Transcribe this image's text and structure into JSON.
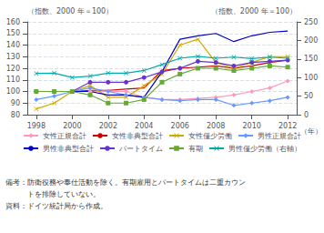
{
  "chart_data": {
    "type": "line",
    "xlabel": "（年）",
    "ylabel": "（指数、2000 年＝100）",
    "y2label": "（指数、2000 年＝100）",
    "x": [
      1998,
      1999,
      2000,
      2001,
      2002,
      2003,
      2004,
      2005,
      2006,
      2007,
      2008,
      2009,
      2010,
      2011,
      2012
    ],
    "xlim": [
      1997.5,
      2012.5
    ],
    "xticks": [
      1998,
      2000,
      2002,
      2004,
      2006,
      2008,
      2010,
      2012
    ],
    "ylim": [
      80,
      160
    ],
    "yticks": [
      80,
      90,
      100,
      110,
      120,
      130,
      140,
      150,
      160
    ],
    "y2lim": [
      0,
      250
    ],
    "y2ticks": [
      0,
      50,
      100,
      150,
      200,
      250
    ],
    "grid": true,
    "legend": "bottom",
    "series": [
      {
        "name": "女性正規合計",
        "color": "#ff99bb",
        "marker": "diamond",
        "values": [
          100,
          100,
          100,
          100,
          100,
          100,
          95,
          93,
          93,
          94,
          95,
          97,
          100,
          103,
          109
        ]
      },
      {
        "name": "女性非典型合計",
        "color": "#cc0000",
        "values": [
          100,
          100,
          100,
          101,
          101,
          102,
          103,
          118,
          120,
          121,
          122,
          120,
          122,
          125,
          127
        ]
      },
      {
        "name": "女性僅少労働",
        "color": "#ccaa00",
        "marker": "x",
        "values": [
          85,
          90,
          100,
          105,
          95,
          95,
          105,
          115,
          140,
          145,
          125,
          120,
          125,
          130,
          130
        ]
      },
      {
        "name": "男性正規合計",
        "color": "#6699ff",
        "marker": "diamond",
        "values": [
          93,
          96,
          100,
          103,
          100,
          97,
          95,
          93,
          92,
          93,
          93,
          88,
          90,
          92,
          95
        ]
      },
      {
        "name": "男性非典型合計",
        "color": "#0000cc",
        "values": [
          100,
          100,
          100,
          100,
          97,
          97,
          95,
          117,
          145,
          148,
          150,
          143,
          148,
          151,
          152
        ]
      },
      {
        "name": "パートタイム",
        "color": "#6633cc",
        "marker": "circle",
        "values": [
          100,
          100,
          100,
          108,
          108,
          108,
          112,
          117,
          120,
          126,
          125,
          122,
          125,
          126,
          127
        ]
      },
      {
        "name": "有期",
        "color": "#66aa33",
        "marker": "square",
        "values": [
          100,
          100,
          100,
          97,
          90,
          90,
          93,
          108,
          115,
          120,
          120,
          118,
          120,
          122,
          121
        ]
      },
      {
        "name": "男性僅少労働（右軸）",
        "color": "#00aaaa",
        "marker": "x",
        "axis": "y2",
        "values": [
          111,
          112,
          100,
          104,
          112,
          112,
          119,
          135,
          152,
          157,
          152,
          155,
          151,
          155,
          152
        ]
      }
    ],
    "annotations": [
      "備考：防衛役務や奉仕活動を除く。有期雇用とパートタイムは二重カウン",
      "　　　トを排除していない。",
      "資料：ドイツ統計局から作成。"
    ]
  }
}
